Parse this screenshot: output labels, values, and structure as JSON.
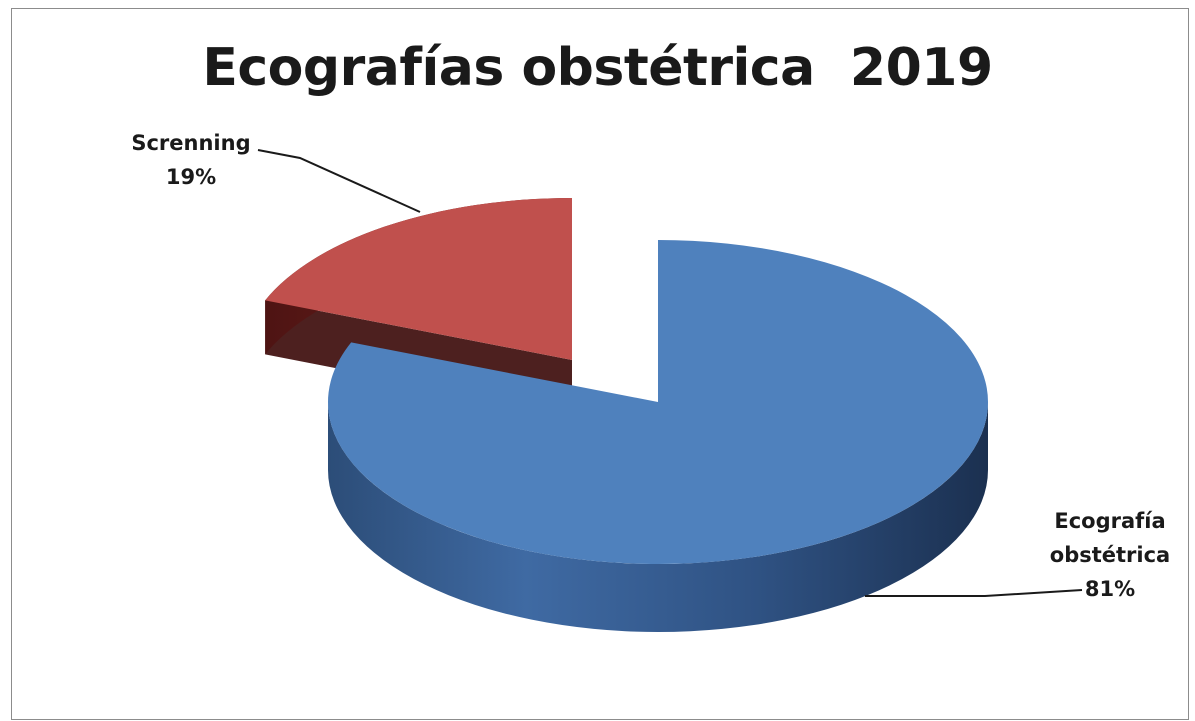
{
  "chart_data": {
    "type": "pie",
    "style": "3d-exploded",
    "title": "Ecografías obstétrica  2019",
    "slices": [
      {
        "name": "Ecografía obstétrica",
        "label_lines": [
          "Ecografía",
          "obstétrica",
          "81%"
        ],
        "value": 81,
        "color": "#4f81bd"
      },
      {
        "name": "Screnning",
        "label_lines": [
          "Screnning",
          "19%"
        ],
        "value": 19,
        "color": "#c0504d"
      }
    ],
    "legend": "none"
  }
}
